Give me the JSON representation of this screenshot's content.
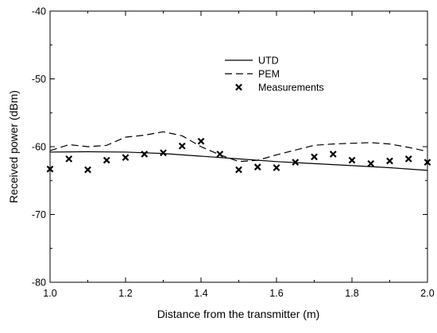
{
  "chart_data": {
    "type": "line",
    "title": "",
    "xlabel": "Distance from the transmitter (m)",
    "ylabel": "Received power (dBm)",
    "xlim": [
      1.0,
      2.0
    ],
    "ylim": [
      -80,
      -40
    ],
    "xticks": [
      "1.0",
      "1.2",
      "1.4",
      "1.6",
      "1.8",
      "2.0"
    ],
    "yticks": [
      "-40",
      "-50",
      "-60",
      "-70",
      "-80"
    ],
    "grid": false,
    "legend_position": "top-right",
    "legend": [
      "UTD",
      "PEM",
      "Measurements"
    ],
    "series": [
      {
        "name": "UTD",
        "style": "solid",
        "x": [
          1.0,
          1.1,
          1.2,
          1.3,
          1.4,
          1.5,
          1.6,
          1.7,
          1.8,
          1.9,
          2.0
        ],
        "y": [
          -60.8,
          -60.75,
          -60.8,
          -61.0,
          -61.4,
          -61.8,
          -62.2,
          -62.5,
          -62.8,
          -63.1,
          -63.5
        ]
      },
      {
        "name": "PEM",
        "style": "dashed",
        "x": [
          1.0,
          1.05,
          1.1,
          1.15,
          1.2,
          1.25,
          1.3,
          1.35,
          1.4,
          1.45,
          1.5,
          1.55,
          1.6,
          1.65,
          1.7,
          1.75,
          1.8,
          1.85,
          1.9,
          1.95,
          2.0
        ],
        "y": [
          -60.6,
          -59.7,
          -60.0,
          -59.8,
          -58.6,
          -58.3,
          -57.8,
          -58.4,
          -60.0,
          -61.2,
          -62.2,
          -62.0,
          -61.2,
          -60.5,
          -59.8,
          -59.6,
          -59.5,
          -59.4,
          -59.6,
          -60.1,
          -60.7
        ]
      },
      {
        "name": "Measurements",
        "style": "markers",
        "marker": "x",
        "x": [
          1.0,
          1.05,
          1.1,
          1.15,
          1.2,
          1.25,
          1.3,
          1.35,
          1.4,
          1.45,
          1.5,
          1.55,
          1.6,
          1.65,
          1.7,
          1.75,
          1.8,
          1.85,
          1.9,
          1.95,
          2.0
        ],
        "y": [
          -63.3,
          -61.8,
          -63.4,
          -62.0,
          -61.6,
          -61.1,
          -60.9,
          -59.9,
          -59.2,
          -61.1,
          -63.4,
          -63.0,
          -63.1,
          -62.3,
          -61.5,
          -61.1,
          -62.0,
          -62.5,
          -62.1,
          -61.8,
          -62.3
        ]
      }
    ]
  }
}
